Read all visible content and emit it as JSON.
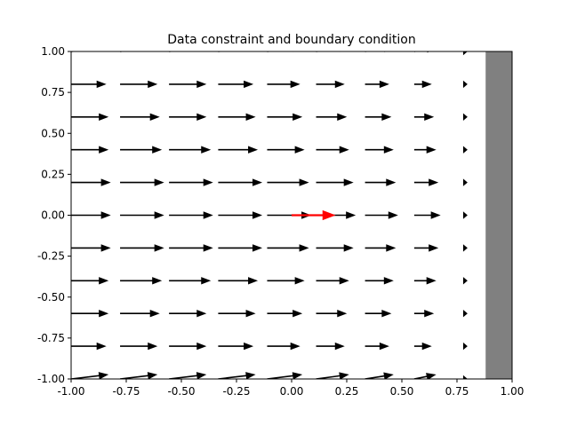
{
  "chart_data": {
    "type": "quiver",
    "title": "Data constraint and boundary condition",
    "xlabel": "",
    "ylabel": "",
    "xlim": [
      -1.0,
      1.0
    ],
    "ylim": [
      -1.0,
      1.0
    ],
    "xticks": [
      "-1.00",
      "-0.75",
      "-0.50",
      "-0.25",
      "0.00",
      "0.25",
      "0.50",
      "0.75",
      "1.00"
    ],
    "yticks": [
      "1.00",
      "0.75",
      "0.50",
      "0.25",
      "0.00",
      "-0.25",
      "-0.50",
      "-0.75",
      "-1.00"
    ],
    "grid": false,
    "legend": "none",
    "colors": {
      "field_arrows": "#000000",
      "data_constraint_arrow": "#ff0000",
      "boundary_region": "#808080"
    },
    "boundary_region": {
      "x_range": [
        0.88,
        1.0
      ],
      "y_range": [
        -1.0,
        1.0
      ]
    },
    "field_x": [
      -1.0,
      -0.778,
      -0.556,
      -0.333,
      -0.111,
      0.111,
      0.333,
      0.556,
      0.778
    ],
    "field_y": [
      -1.0,
      -0.8,
      -0.6,
      -0.4,
      -0.2,
      0.0,
      0.2,
      0.4,
      0.6,
      0.8,
      1.0
    ],
    "field_u": [
      [
        0.17,
        0.17,
        0.17,
        0.17,
        0.16,
        0.15,
        0.13,
        0.1,
        0.02
      ],
      [
        0.16,
        0.17,
        0.17,
        0.16,
        0.15,
        0.13,
        0.11,
        0.08,
        0.02
      ],
      [
        0.17,
        0.18,
        0.17,
        0.17,
        0.16,
        0.14,
        0.12,
        0.09,
        0.02
      ],
      [
        0.17,
        0.19,
        0.19,
        0.18,
        0.17,
        0.15,
        0.13,
        0.1,
        0.02
      ],
      [
        0.18,
        0.2,
        0.2,
        0.2,
        0.19,
        0.17,
        0.14,
        0.11,
        0.02
      ],
      [
        0.18,
        0.2,
        0.2,
        0.2,
        0.2,
        0.18,
        0.15,
        0.12,
        0.02
      ],
      [
        0.18,
        0.2,
        0.2,
        0.2,
        0.19,
        0.17,
        0.14,
        0.11,
        0.02
      ],
      [
        0.17,
        0.19,
        0.19,
        0.18,
        0.17,
        0.15,
        0.13,
        0.1,
        0.02
      ],
      [
        0.17,
        0.18,
        0.17,
        0.17,
        0.16,
        0.14,
        0.12,
        0.09,
        0.02
      ],
      [
        0.16,
        0.17,
        0.17,
        0.16,
        0.15,
        0.13,
        0.11,
        0.08,
        0.02
      ],
      [
        0.17,
        0.17,
        0.17,
        0.17,
        0.16,
        0.15,
        0.13,
        0.1,
        0.02
      ]
    ],
    "field_v": [
      [
        0.02,
        0.02,
        0.02,
        0.02,
        0.02,
        0.02,
        0.02,
        0.02,
        0.0
      ],
      [
        0.0,
        0.0,
        0.0,
        0.0,
        0.0,
        0.0,
        0.0,
        0.0,
        0.0
      ],
      [
        0.0,
        0.0,
        0.0,
        0.0,
        0.0,
        0.0,
        0.0,
        0.0,
        0.0
      ],
      [
        0.0,
        0.0,
        0.0,
        0.0,
        0.0,
        0.0,
        0.0,
        0.0,
        0.0
      ],
      [
        0.0,
        0.0,
        0.0,
        0.0,
        0.0,
        0.0,
        0.0,
        0.0,
        0.0
      ],
      [
        0.0,
        0.0,
        0.0,
        0.0,
        0.0,
        0.0,
        0.0,
        0.0,
        0.0
      ],
      [
        0.0,
        0.0,
        0.0,
        0.0,
        0.0,
        0.0,
        0.0,
        0.0,
        0.0
      ],
      [
        0.0,
        0.0,
        0.0,
        0.0,
        0.0,
        0.0,
        0.0,
        0.0,
        0.0
      ],
      [
        0.0,
        0.0,
        0.0,
        0.0,
        0.0,
        0.0,
        0.0,
        0.0,
        0.0
      ],
      [
        0.0,
        0.0,
        0.0,
        0.0,
        0.0,
        0.0,
        0.0,
        0.0,
        0.0
      ],
      [
        0.02,
        0.02,
        0.02,
        0.02,
        0.02,
        0.02,
        0.02,
        0.02,
        0.0
      ]
    ],
    "data_constraint": {
      "x": 0.0,
      "y": 0.0,
      "u": 0.2,
      "v": 0.0
    }
  }
}
